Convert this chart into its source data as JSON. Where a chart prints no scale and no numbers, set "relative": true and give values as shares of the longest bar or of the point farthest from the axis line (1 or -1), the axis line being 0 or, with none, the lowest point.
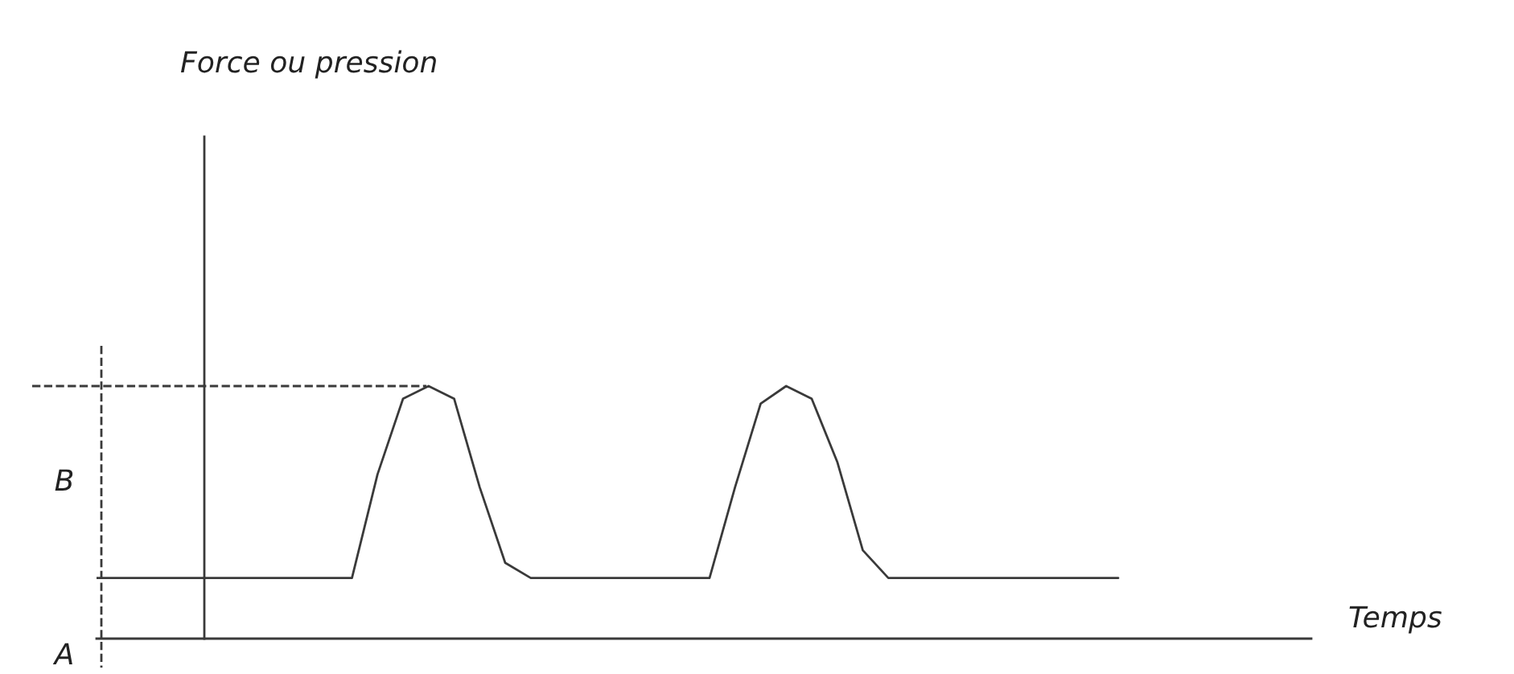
{
  "chart_data": {
    "type": "line",
    "relative": true,
    "categories": [
      null,
      null,
      null,
      null,
      null,
      null,
      null,
      null,
      null,
      null,
      null,
      null,
      null,
      null,
      null,
      null,
      null,
      null,
      null,
      null,
      null,
      null,
      null,
      null,
      null,
      null,
      null,
      null,
      null,
      null,
      null,
      null,
      null,
      null,
      null,
      null,
      null,
      null,
      null,
      null,
      null
    ],
    "series": [
      {
        "color": "#3a3a3a",
        "values": [
          0.24,
          0.24,
          0.24,
          0.24,
          0.24,
          0.24,
          0.24,
          0.24,
          0.24,
          0.24,
          0.24,
          0.65,
          0.95,
          1.0,
          0.95,
          0.6,
          0.3,
          0.24,
          0.24,
          0.24,
          0.24,
          0.24,
          0.24,
          0.24,
          0.24,
          0.6,
          0.93,
          1.0,
          0.95,
          0.7,
          0.35,
          0.24,
          0.24,
          0.24,
          0.24,
          0.24,
          0.24,
          0.24,
          0.24,
          0.24,
          0.24
        ]
      }
    ],
    "ref_lines": [
      {
        "axis": "y",
        "value": 1.0,
        "line_style": "dashed",
        "color": "#3a3a3a"
      }
    ],
    "annotations": [
      "Force ou pression",
      "B",
      "A",
      "Temps"
    ],
    "legend": false,
    "marker": "none",
    "line_style": "solid"
  }
}
